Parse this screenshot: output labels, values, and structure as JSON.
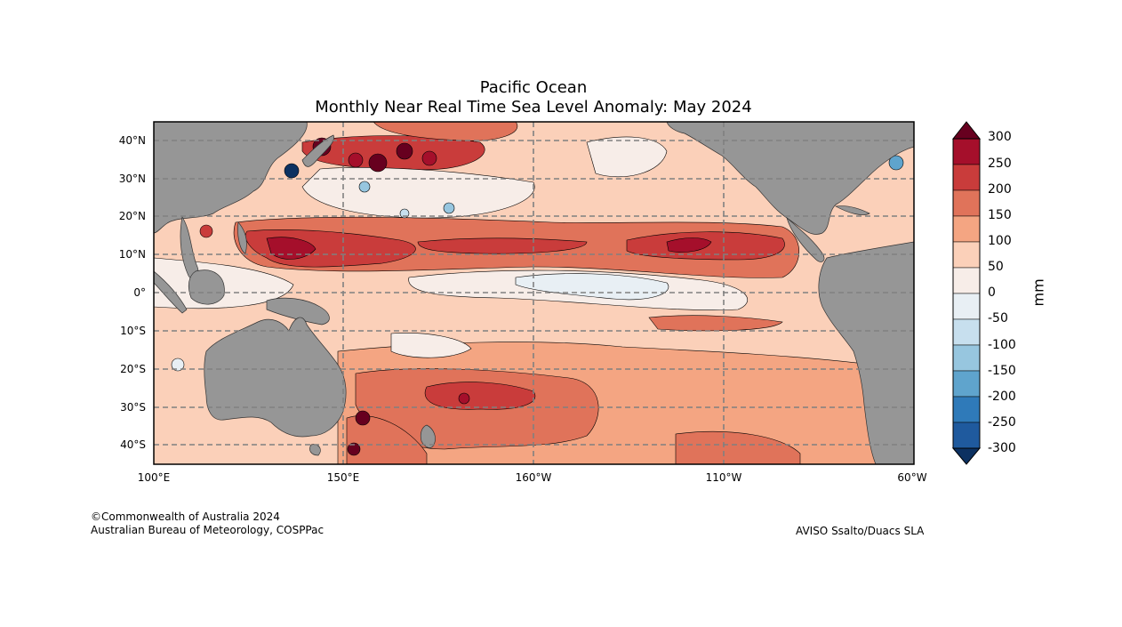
{
  "title": {
    "line1": "Pacific Ocean",
    "line2": "Monthly Near Real Time Sea Level Anomaly: May 2024"
  },
  "axes": {
    "lat_labels": [
      "40°N",
      "30°N",
      "20°N",
      "10°N",
      "0°",
      "10°S",
      "20°S",
      "30°S",
      "40°S"
    ],
    "lon_labels": [
      "100°E",
      "150°E",
      "160°W",
      "110°W",
      "60°W"
    ]
  },
  "colorbar": {
    "unit": "mm",
    "labels": [
      "300",
      "250",
      "200",
      "150",
      "100",
      "50",
      "0",
      "-50",
      "-100",
      "-150",
      "-200",
      "-250",
      "-300"
    ],
    "colors": [
      "#67001f",
      "#a50f2b",
      "#c93c3b",
      "#e0735a",
      "#f4a582",
      "#fbd0b9",
      "#f7ede8",
      "#e8eff4",
      "#c7dfee",
      "#97c6df",
      "#5fa4cd",
      "#2f7ab9",
      "#1f5a9e",
      "#0c3161"
    ]
  },
  "credits": {
    "left_line1": "©Commonwealth of Australia 2024",
    "left_line2": "Australian Bureau of Meteorology, COSPPac",
    "right": "AVISO Ssalto/Duacs SLA"
  }
}
